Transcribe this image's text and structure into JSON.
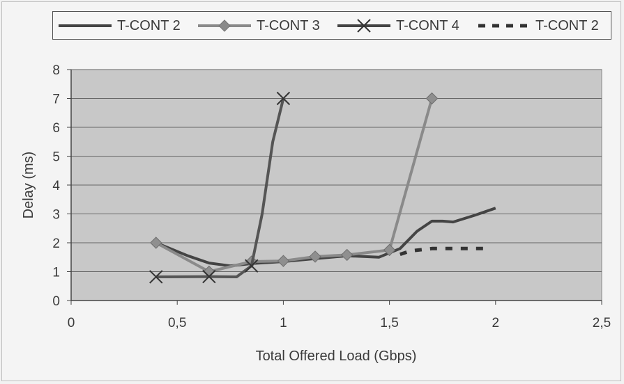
{
  "chart_data": {
    "type": "line",
    "xlabel": "Total Offered Load (Gbps)",
    "ylabel": "Delay (ms)",
    "xlim": [
      0,
      2.5
    ],
    "ylim": [
      0,
      8
    ],
    "x_ticks": [
      "0",
      "0,5",
      "1",
      "1,5",
      "2",
      "2,5"
    ],
    "y_ticks": [
      "0",
      "1",
      "2",
      "3",
      "4",
      "5",
      "6",
      "7",
      "8"
    ],
    "grid": "horizontal",
    "legend_position": "top",
    "plot_background": "#c8c8c8",
    "series": [
      {
        "name": "T-CONT 2",
        "style": "solid",
        "marker": "none",
        "color": "#444444",
        "points": [
          [
            0.4,
            2.0
          ],
          [
            0.55,
            1.55
          ],
          [
            0.65,
            1.3
          ],
          [
            0.75,
            1.2
          ],
          [
            0.85,
            1.28
          ],
          [
            1.0,
            1.35
          ],
          [
            1.15,
            1.45
          ],
          [
            1.3,
            1.55
          ],
          [
            1.45,
            1.5
          ],
          [
            1.55,
            1.8
          ],
          [
            1.63,
            2.4
          ],
          [
            1.7,
            2.75
          ],
          [
            1.75,
            2.75
          ],
          [
            1.8,
            2.72
          ],
          [
            1.9,
            2.95
          ],
          [
            2.0,
            3.2
          ]
        ]
      },
      {
        "name": "T-CONT 3",
        "style": "solid",
        "marker": "diamond",
        "color": "#8a8a8a",
        "points": [
          [
            0.4,
            2.0
          ],
          [
            0.65,
            1.0
          ],
          [
            0.85,
            1.35
          ],
          [
            1.0,
            1.37
          ],
          [
            1.15,
            1.52
          ],
          [
            1.3,
            1.58
          ],
          [
            1.5,
            1.75
          ],
          [
            1.7,
            7.0
          ]
        ]
      },
      {
        "name": "T-CONT 4",
        "style": "solid",
        "marker": "x",
        "color": "#555555",
        "points": [
          [
            0.4,
            0.82
          ],
          [
            0.65,
            0.83
          ],
          [
            0.78,
            0.82
          ],
          [
            0.85,
            1.2
          ],
          [
            0.9,
            3.0
          ],
          [
            0.95,
            5.5
          ],
          [
            1.0,
            7.0
          ]
        ]
      },
      {
        "name": "T-CONT 2",
        "style": "dashed",
        "marker": "none",
        "color": "#333333",
        "points": [
          [
            1.55,
            1.6
          ],
          [
            1.6,
            1.72
          ],
          [
            1.7,
            1.8
          ],
          [
            1.95,
            1.8
          ]
        ]
      }
    ]
  }
}
